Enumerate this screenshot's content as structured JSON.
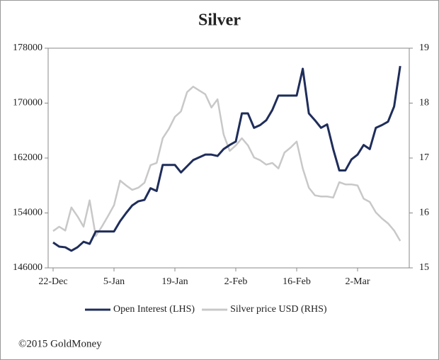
{
  "chart_data": {
    "type": "line",
    "title": "Silver",
    "categories": [
      "22-Dec",
      null,
      null,
      null,
      null,
      null,
      null,
      null,
      null,
      null,
      "5-Jan",
      null,
      null,
      null,
      null,
      null,
      null,
      null,
      null,
      null,
      "19-Jan",
      null,
      null,
      null,
      null,
      null,
      null,
      null,
      null,
      null,
      "2-Feb",
      null,
      null,
      null,
      null,
      null,
      null,
      null,
      null,
      null,
      "16-Feb",
      null,
      null,
      null,
      null,
      null,
      null,
      null,
      null,
      null,
      "2-Mar",
      null,
      null,
      null,
      null,
      null,
      null,
      null
    ],
    "series": [
      {
        "name": "Open Interest (LHS)",
        "color": "#1f2d5a",
        "axis": "y",
        "values": [
          149700,
          149100,
          149000,
          148500,
          149000,
          149800,
          149500,
          151300,
          151300,
          151300,
          151300,
          152800,
          154000,
          155100,
          155700,
          155900,
          157600,
          157200,
          161000,
          161000,
          161000,
          159900,
          160800,
          161700,
          162100,
          162500,
          162500,
          162300,
          163300,
          163900,
          164400,
          168500,
          168500,
          166400,
          166800,
          167500,
          169000,
          171100,
          171100,
          171100,
          171100,
          175000,
          168500,
          167500,
          166400,
          166900,
          163300,
          160200,
          160200,
          161800,
          162500,
          163900,
          163300,
          166400,
          166800,
          167300,
          169500,
          175400
        ]
      },
      {
        "name": "Silver price USD (RHS)",
        "color": "#c8c8c8",
        "axis": "y2",
        "values": [
          15.67,
          15.75,
          15.68,
          16.1,
          15.94,
          15.75,
          16.23,
          15.58,
          15.75,
          15.94,
          16.14,
          16.59,
          16.5,
          16.42,
          16.46,
          16.55,
          16.87,
          16.91,
          17.36,
          17.53,
          17.75,
          17.85,
          18.2,
          18.3,
          18.23,
          18.16,
          17.92,
          18.07,
          17.43,
          17.13,
          17.23,
          17.36,
          17.23,
          17.01,
          16.96,
          16.88,
          16.91,
          16.81,
          17.1,
          17.19,
          17.3,
          16.81,
          16.46,
          16.32,
          16.3,
          16.3,
          16.28,
          16.56,
          16.52,
          16.52,
          16.5,
          16.26,
          16.2,
          16.01,
          15.9,
          15.81,
          15.68,
          15.49
        ]
      }
    ],
    "ylim": [
      146000,
      178000
    ],
    "yticks": [
      146000,
      154000,
      162000,
      170000,
      178000
    ],
    "y2lim": [
      15,
      19
    ],
    "y2ticks": [
      15,
      16,
      17,
      18,
      19
    ],
    "legend": "bottom",
    "footer": "©2015 GoldMoney"
  }
}
